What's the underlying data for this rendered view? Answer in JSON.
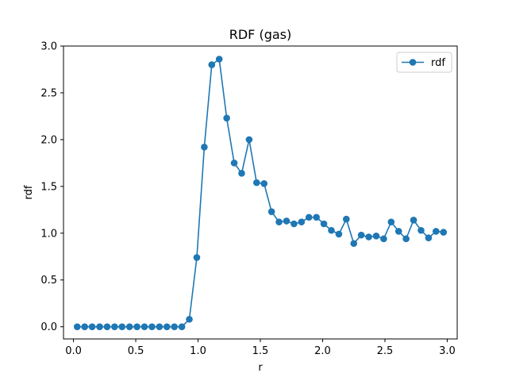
{
  "chart_data": {
    "type": "line",
    "title": "RDF (gas)",
    "xlabel": "r",
    "ylabel": "rdf",
    "xlim": [
      -0.08,
      3.08
    ],
    "ylim": [
      -0.13,
      3.0
    ],
    "xticks": [
      0.0,
      0.5,
      1.0,
      1.5,
      2.0,
      2.5,
      3.0
    ],
    "xtick_labels": [
      "0.0",
      "0.5",
      "1.0",
      "1.5",
      "2.0",
      "2.5",
      "3.0"
    ],
    "yticks": [
      0.0,
      0.5,
      1.0,
      1.5,
      2.0,
      2.5,
      3.0
    ],
    "ytick_labels": [
      "0.0",
      "0.5",
      "1.0",
      "1.5",
      "2.0",
      "2.5",
      "3.0"
    ],
    "grid": false,
    "legend": {
      "placement": "upper right",
      "entries": [
        "rdf"
      ]
    },
    "colors": {
      "series": "#1f77b4"
    },
    "marker": "circle",
    "series": [
      {
        "name": "rdf",
        "x": [
          0.03,
          0.09,
          0.15,
          0.21,
          0.27,
          0.33,
          0.39,
          0.45,
          0.51,
          0.57,
          0.63,
          0.69,
          0.75,
          0.81,
          0.87,
          0.93,
          0.99,
          1.05,
          1.11,
          1.17,
          1.23,
          1.29,
          1.35,
          1.41,
          1.47,
          1.53,
          1.59,
          1.65,
          1.71,
          1.77,
          1.83,
          1.89,
          1.95,
          2.01,
          2.07,
          2.13,
          2.19,
          2.25,
          2.31,
          2.37,
          2.43,
          2.49,
          2.55,
          2.61,
          2.67,
          2.73,
          2.79,
          2.85,
          2.91,
          2.97
        ],
        "y": [
          0.0,
          0.0,
          0.0,
          0.0,
          0.0,
          0.0,
          0.0,
          0.0,
          0.0,
          0.0,
          0.0,
          0.0,
          0.0,
          0.0,
          0.0,
          0.08,
          0.74,
          1.92,
          2.8,
          2.86,
          2.23,
          1.75,
          1.64,
          2.0,
          1.54,
          1.53,
          1.23,
          1.12,
          1.13,
          1.1,
          1.12,
          1.17,
          1.17,
          1.1,
          1.03,
          0.99,
          1.15,
          0.89,
          0.98,
          0.96,
          0.97,
          0.94,
          1.12,
          1.02,
          0.94,
          1.14,
          1.03,
          0.95,
          1.02,
          1.01
        ]
      }
    ]
  }
}
